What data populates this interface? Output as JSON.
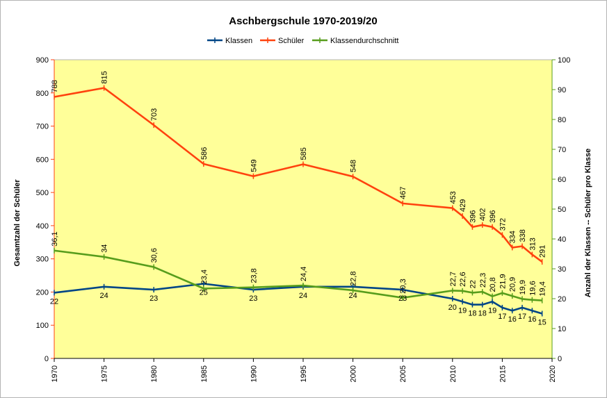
{
  "chart_data": {
    "type": "line",
    "title": "Aschbergschule 1970-2019/20",
    "x": [
      1970,
      1975,
      1980,
      1985,
      1990,
      1995,
      2000,
      2005,
      2010,
      2011,
      2012,
      2013,
      2014,
      2015,
      2016,
      2017,
      2018,
      2019
    ],
    "xticks": [
      "1970",
      "1975",
      "1980",
      "1985",
      "1990",
      "1995",
      "2000",
      "2005",
      "2010",
      "2015",
      "2020"
    ],
    "xlim": [
      1970,
      2020
    ],
    "ylabel_left": "Gesamtzahl der Schüler",
    "ylabel_right": "Anzahl der Klassen -- Schüler pro Klasse",
    "ylim_left": [
      0,
      900
    ],
    "ylim_right": [
      0,
      100
    ],
    "yticks_left": [
      "0",
      "100",
      "200",
      "300",
      "400",
      "500",
      "600",
      "700",
      "800",
      "900"
    ],
    "yticks_right": [
      "0",
      "10",
      "20",
      "30",
      "40",
      "50",
      "60",
      "70",
      "80",
      "90",
      "100"
    ],
    "grid": false,
    "legend_position": "top",
    "plot_background": "#ffff99",
    "series": [
      {
        "name": "Klassen",
        "axis": "right",
        "color": "#004586",
        "values": [
          22,
          24,
          23,
          25,
          23,
          24,
          24,
          23,
          20,
          19,
          18,
          18,
          19,
          17,
          16,
          17,
          16,
          15
        ],
        "labels": [
          "22",
          "24",
          "23",
          "25",
          "23",
          "24",
          "24",
          "23",
          "20",
          "19",
          "18",
          "18",
          "19",
          "17",
          "16",
          "17",
          "16",
          "15"
        ]
      },
      {
        "name": "Schüler",
        "axis": "left",
        "color": "#ff420e",
        "values": [
          788,
          815,
          703,
          586,
          549,
          585,
          548,
          467,
          453,
          429,
          396,
          402,
          396,
          372,
          334,
          338,
          313,
          291
        ],
        "labels": [
          "788",
          "815",
          "703",
          "586",
          "549",
          "585",
          "548",
          "467",
          "453",
          "429",
          "396",
          "402",
          "396",
          "372",
          "334",
          "338",
          "313",
          "291"
        ]
      },
      {
        "name": "Klassendurchschnitt",
        "axis": "right",
        "color": "#579d1c",
        "values": [
          36.1,
          34,
          30.6,
          23.4,
          23.8,
          24.4,
          22.8,
          20.3,
          22.7,
          22.6,
          22,
          22.3,
          20.8,
          21.9,
          20.9,
          19.9,
          19.6,
          19.4
        ],
        "labels": [
          "36,1",
          "34",
          "30,6",
          "23,4",
          "23,8",
          "24,4",
          "22,8",
          "20,3",
          "22,7",
          "22,6",
          "22",
          "22,3",
          "20,8",
          "21,9",
          "20,9",
          "19,9",
          "19,6",
          "19,4"
        ]
      }
    ]
  }
}
